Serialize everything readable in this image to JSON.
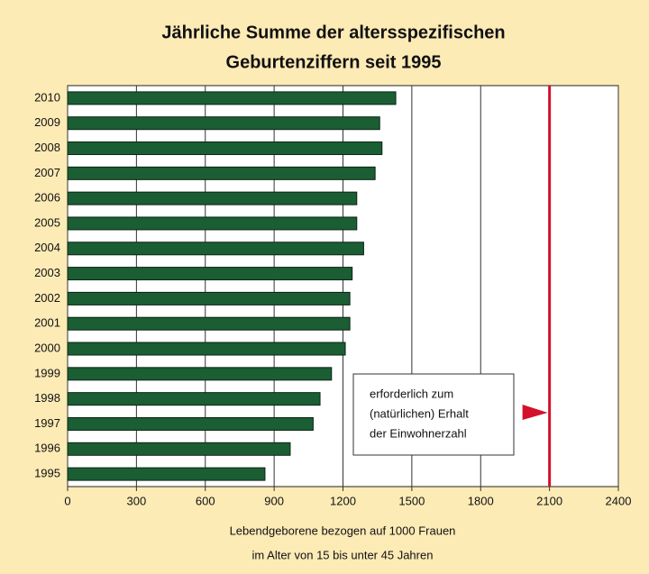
{
  "chart_data": {
    "type": "barh",
    "title": [
      "Jährliche Summe der altersspezifischen",
      "Geburtenziffern seit 1995"
    ],
    "categories": [
      "2010",
      "2009",
      "2008",
      "2007",
      "2006",
      "2005",
      "2004",
      "2003",
      "2002",
      "2001",
      "2000",
      "1999",
      "1998",
      "1997",
      "1996",
      "1995"
    ],
    "values": [
      1430,
      1360,
      1370,
      1340,
      1260,
      1260,
      1290,
      1240,
      1230,
      1230,
      1210,
      1150,
      1100,
      1070,
      970,
      860
    ],
    "color": "#1b5e34",
    "xlim": [
      0,
      2400
    ],
    "xticks": [
      0,
      300,
      600,
      900,
      1200,
      1500,
      1800,
      2100,
      2400
    ],
    "grid": true,
    "xlabel": [
      "Lebendgeborene bezogen auf 1000 Frauen",
      "im Alter von 15 bis unter 45 Jahren"
    ],
    "reference_line": {
      "value": 2100,
      "color": "#d4102c"
    },
    "annotation": [
      "erforderlich zum",
      "(natürlichen) Erhalt",
      "der Einwohnerzahl"
    ]
  }
}
